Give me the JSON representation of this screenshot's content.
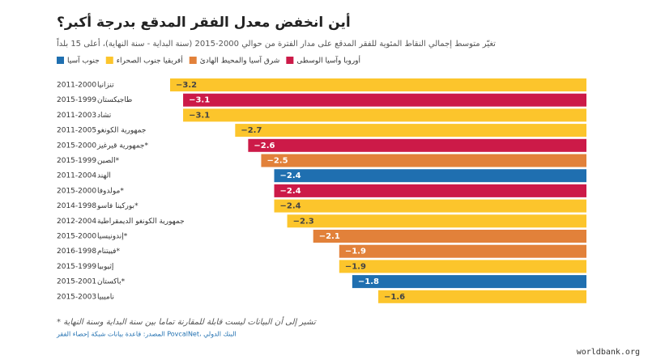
{
  "chart_data": {
    "type": "barh",
    "title": "أين انخفض معدل الفقر المدقع بدرجة أكبر؟",
    "subtitle": "تغيّر متوسط إجمالي النقاط المئوية للفقر المدقع على مدار الفترة من حوالي 2000-2015 (سنة البداية - سنة النهاية)، أعلى 15 بلداً",
    "legend": [
      {
        "name": "جنوب آسيا",
        "color": "#1f6fb0"
      },
      {
        "name": "أفريقيا جنوب الصحراء",
        "color": "#fcc52c"
      },
      {
        "name": "شرق آسيا والمحيط الهادئ",
        "color": "#e2813a"
      },
      {
        "name": "أوروبا وآسيا الوسطى",
        "color": "#cc1a48"
      }
    ],
    "categories": [
      "تنزانيا",
      "طاجيكستان",
      "تشاد",
      "جمهورية الكونغو",
      "جمهورية قيرغيز*",
      "الصين*",
      "الهند",
      "مولدوفا*",
      "بوركينا فاسو*",
      "جمهورية الكونغو الديمقراطية",
      "إندونيسيا*",
      "فييتنام*",
      "إثيوبيا",
      "باكستان*",
      "ناميبيا"
    ],
    "periods": [
      "2011-2000",
      "2015-1999",
      "2011-2003",
      "2011-2005",
      "2015-2000",
      "2015-1999",
      "2011-2004",
      "2015-2000",
      "2014-1998",
      "2012-2004",
      "2015-2000",
      "2016-1998",
      "2015-1999",
      "2015-2001",
      "2015-2003"
    ],
    "values": [
      -3.2,
      -3.1,
      -3.1,
      -2.7,
      -2.6,
      -2.5,
      -2.4,
      -2.4,
      -2.4,
      -2.3,
      -2.1,
      -1.9,
      -1.9,
      -1.8,
      -1.6
    ],
    "value_labels": [
      "−3.2",
      "−3.1",
      "−3.1",
      "−2.7",
      "−2.6",
      "−2.5",
      "−2.4",
      "−2.4",
      "−2.4",
      "−2.3",
      "−2.1",
      "−1.9",
      "−1.9",
      "−1.8",
      "−1.6"
    ],
    "colors": [
      "#fcc52c",
      "#cc1a48",
      "#fcc52c",
      "#fcc52c",
      "#cc1a48",
      "#e2813a",
      "#1f6fb0",
      "#cc1a48",
      "#fcc52c",
      "#fcc52c",
      "#e2813a",
      "#e2813a",
      "#fcc52c",
      "#1f6fb0",
      "#fcc52c"
    ],
    "footnote": "* تشير إلى أن البيانات ليست قابلة للمقارنة تماما بين سنة البداية وسنة النهاية",
    "source": "المصدر: قاعدة بيانات شبكة إحصاء الفقر PovcalNet، البنك الدولي",
    "watermark": "worldbank.org"
  }
}
